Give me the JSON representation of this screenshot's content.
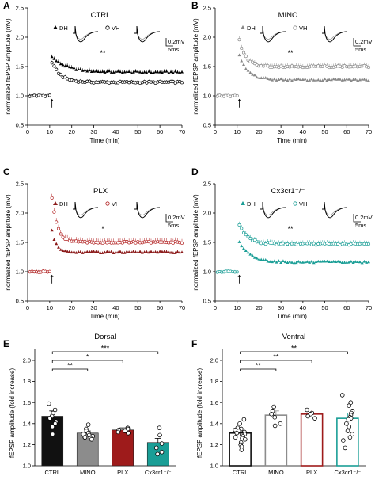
{
  "chart_data": [
    {
      "panel": "A",
      "type": "scatter",
      "title": "CTRL",
      "xlabel": "Time (min)",
      "ylabel": "normalized fEPSP amplitude (mV)",
      "xlim": [
        0,
        70
      ],
      "ylim": [
        0.5,
        2.5
      ],
      "xticks": [
        "0",
        "10",
        "20",
        "30",
        "40",
        "50",
        "60",
        "70"
      ],
      "yticks": [
        "0.5",
        "1.0",
        "1.5",
        "2.0",
        "2.5"
      ],
      "legend": [
        "DH",
        "VH"
      ],
      "scale_bar": [
        "0.2mV",
        "5ms"
      ],
      "significance": "**",
      "arrow_at": 11,
      "colors": {
        "dh": "#000000",
        "vh": "#000000"
      },
      "series": [
        {
          "name": "DH",
          "baseline": 1.0,
          "peak": 1.66,
          "plateau": 1.4,
          "tau": 7,
          "err": 0.03
        },
        {
          "name": "VH",
          "baseline": 1.0,
          "peak": 1.57,
          "plateau": 1.23,
          "tau": 4,
          "err": 0.025
        }
      ]
    },
    {
      "panel": "B",
      "type": "scatter",
      "title": "MINO",
      "xlabel": "Time (min)",
      "ylabel": "normalized fEPSP amplitude (mV)",
      "xlim": [
        0,
        70
      ],
      "ylim": [
        0.5,
        2.5
      ],
      "xticks": [
        "0",
        "10",
        "20",
        "30",
        "40",
        "50",
        "60",
        "70"
      ],
      "yticks": [
        "0.5",
        "1.0",
        "1.5",
        "2.0",
        "2.5"
      ],
      "legend": [
        "DH",
        "VH"
      ],
      "scale_bar": [
        "0.2mV",
        "5ms"
      ],
      "significance": "**",
      "arrow_at": 11,
      "colors": {
        "dh": "#888888",
        "vh": "#888888"
      },
      "series": [
        {
          "name": "DH",
          "baseline": 1.0,
          "peak": 1.68,
          "plateau": 1.27,
          "tau": 4,
          "err": 0.02
        },
        {
          "name": "VH",
          "baseline": 1.0,
          "peak": 1.95,
          "plateau": 1.5,
          "tau": 3,
          "err": 0.04
        }
      ]
    },
    {
      "panel": "C",
      "type": "scatter",
      "title": "PLX",
      "xlabel": "Time (min)",
      "ylabel": "normalized fEPSP amplitude (mV)",
      "xlim": [
        0,
        70
      ],
      "ylim": [
        0.5,
        2.5
      ],
      "xticks": [
        "0",
        "10",
        "20",
        "30",
        "40",
        "50",
        "60",
        "70"
      ],
      "yticks": [
        "0.5",
        "1.0",
        "1.5",
        "2.0",
        "2.5"
      ],
      "legend": [
        "DH",
        "VH"
      ],
      "scale_bar": [
        "0.2mV",
        "5ms"
      ],
      "significance": "*",
      "arrow_at": 11,
      "colors": {
        "dh": "#8b1a1a",
        "vh": "#b22222"
      },
      "series": [
        {
          "name": "DH",
          "baseline": 1.0,
          "peak": 1.7,
          "plateau": 1.33,
          "tau": 2,
          "err": 0.02
        },
        {
          "name": "VH",
          "baseline": 1.0,
          "peak": 2.25,
          "plateau": 1.5,
          "tau": 2.5,
          "err": 0.05
        }
      ]
    },
    {
      "panel": "D",
      "type": "scatter",
      "title": "Cx3cr1⁻/⁻",
      "xlabel": "Time (min)",
      "ylabel": "normalized fEPSP amplitude (mV)",
      "xlim": [
        0,
        70
      ],
      "ylim": [
        0.5,
        2.5
      ],
      "xticks": [
        "0",
        "10",
        "20",
        "30",
        "40",
        "50",
        "60",
        "70"
      ],
      "yticks": [
        "0.5",
        "1.0",
        "1.5",
        "2.0",
        "2.5"
      ],
      "legend": [
        "DH",
        "VH"
      ],
      "scale_bar": [
        "0.2mV",
        "5ms"
      ],
      "significance": "**",
      "arrow_at": 11,
      "colors": {
        "dh": "#1a9e96",
        "vh": "#1a9e96"
      },
      "series": [
        {
          "name": "DH",
          "baseline": 1.0,
          "peak": 1.5,
          "plateau": 1.16,
          "tau": 5,
          "err": 0.02
        },
        {
          "name": "VH",
          "baseline": 1.0,
          "peak": 1.8,
          "plateau": 1.47,
          "tau": 4,
          "err": 0.04
        }
      ]
    },
    {
      "panel": "E",
      "type": "bar",
      "title": "Dorsal",
      "ylabel": "fEPSP amplitude (fold increase)",
      "ylim": [
        1.0,
        2.0
      ],
      "yticks": [
        "1.0",
        "1.2",
        "1.4",
        "1.6",
        "1.8",
        "2.0"
      ],
      "categories": [
        "CTRL",
        "MINO",
        "PLX",
        "Cx3cr1⁻/⁻"
      ],
      "values": [
        1.47,
        1.31,
        1.34,
        1.22
      ],
      "errors": [
        0.05,
        0.02,
        0.02,
        0.04
      ],
      "fills": [
        "#111111",
        "#8c8c8c",
        "#9e1b1b",
        "#1a9e96"
      ],
      "points": [
        [
          1.59,
          1.53,
          1.5,
          1.47,
          1.45,
          1.42,
          1.4,
          1.37,
          1.3
        ],
        [
          1.39,
          1.35,
          1.33,
          1.31,
          1.3,
          1.29,
          1.28,
          1.27,
          1.27,
          1.26,
          1.25
        ],
        [
          1.36,
          1.35,
          1.34,
          1.33,
          1.32,
          1.31
        ],
        [
          1.36,
          1.29,
          1.21,
          1.17,
          1.13,
          1.11
        ]
      ],
      "brackets": [
        {
          "from": 0,
          "to": 1,
          "label": "**"
        },
        {
          "from": 0,
          "to": 2,
          "label": "*"
        },
        {
          "from": 0,
          "to": 3,
          "label": "***"
        }
      ]
    },
    {
      "panel": "F",
      "type": "bar",
      "title": "Ventral",
      "ylabel": "fEPSP amplitude (fold increase)",
      "ylim": [
        1.0,
        2.0
      ],
      "yticks": [
        "1.0",
        "1.2",
        "1.4",
        "1.6",
        "1.8",
        "2.0"
      ],
      "categories": [
        "CTRL",
        "MINO",
        "PLX",
        "Cx3cr1⁻/⁻"
      ],
      "values": [
        1.31,
        1.48,
        1.49,
        1.45
      ],
      "errors": [
        0.02,
        0.04,
        0.04,
        0.05
      ],
      "fills": [
        "#ffffff",
        "#ffffff",
        "#ffffff",
        "#ffffff"
      ],
      "outlines": [
        "#111111",
        "#8c8c8c",
        "#9e1b1b",
        "#1a9e96"
      ],
      "points": [
        [
          1.44,
          1.4,
          1.36,
          1.35,
          1.34,
          1.33,
          1.32,
          1.31,
          1.3,
          1.29,
          1.28,
          1.27,
          1.26,
          1.25,
          1.22,
          1.2,
          1.18,
          1.15
        ],
        [
          1.56,
          1.52,
          1.49,
          1.46,
          1.4,
          1.38
        ],
        [
          1.53,
          1.5,
          1.49,
          1.47,
          1.45
        ],
        [
          1.67,
          1.6,
          1.57,
          1.52,
          1.5,
          1.48,
          1.46,
          1.45,
          1.44,
          1.4,
          1.37,
          1.33,
          1.3,
          1.27,
          1.24,
          1.17
        ]
      ],
      "brackets": [
        {
          "from": 0,
          "to": 1,
          "label": "**"
        },
        {
          "from": 0,
          "to": 2,
          "label": "**"
        },
        {
          "from": 0,
          "to": 3,
          "label": "**"
        }
      ]
    }
  ]
}
